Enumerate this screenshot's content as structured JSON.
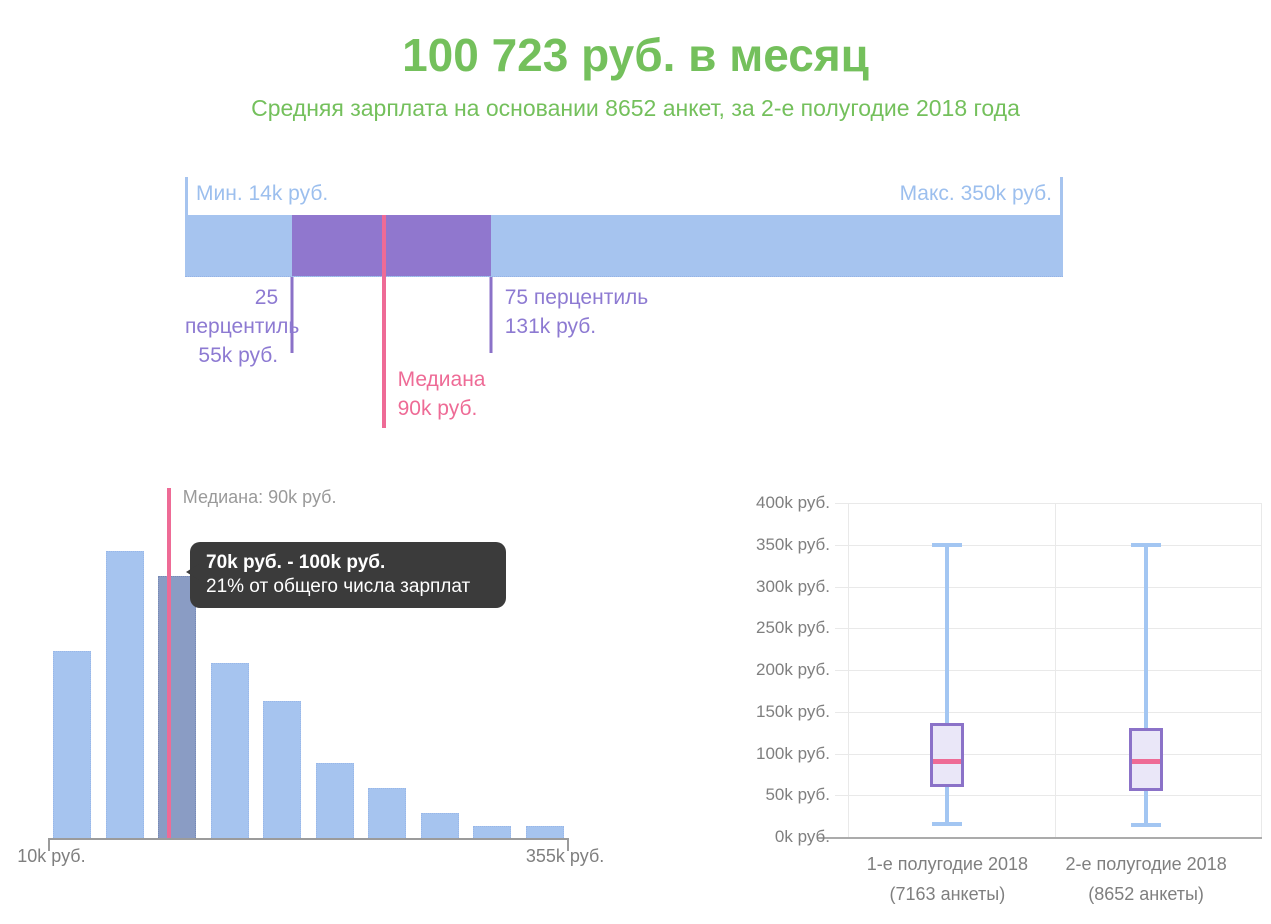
{
  "header": {
    "title": "100 723 руб. в месяц",
    "subtitle": "Средняя зарплата на основании 8652 анкет, за 2-е полугодие 2018 года"
  },
  "colors": {
    "green": "#74c05c",
    "blue": "#a6c4ef",
    "blue_label": "#9cbfee",
    "whisker": "#a3c6f2",
    "purple": "#9077ce",
    "purple_line": "#8b72c8",
    "purple_label": "#8d7ad2",
    "pink": "#ee6b96",
    "gray": "#7f7f7f",
    "gray_light": "#9a9a9a",
    "selected": "#8a9cc4",
    "tooltip": "#3b3b3b",
    "boxfill": "rgba(230,227,247,0.85)",
    "grid": "#e9e9e9",
    "axis": "#9b9b9b"
  },
  "chart_data": [
    {
      "type": "range_strip",
      "min": 14,
      "q1": 55,
      "median": 90,
      "q3": 131,
      "max": 350,
      "unit": "k руб.",
      "labels": {
        "min": "Мин. 14k руб.",
        "max": "Макс. 350k руб.",
        "q1": [
          "25 перцентиль",
          "55k руб."
        ],
        "q3": [
          "75 перцентиль",
          "131k руб."
        ],
        "median": [
          "Медиана",
          "90k руб."
        ]
      }
    },
    {
      "type": "bar",
      "x_min": 10,
      "x_max": 355,
      "x_range_labels": [
        "10k руб.",
        "355k руб."
      ],
      "values_percent": [
        15,
        23,
        21,
        14,
        11,
        6,
        4,
        2,
        1,
        1
      ],
      "highlighted_bar_index": 2,
      "median_value": 90,
      "median_label": "Медиана: 90k руб.",
      "tooltip": {
        "title": "70k руб. - 100k руб.",
        "subtitle": "21% от общего числа зарплат"
      }
    },
    {
      "type": "boxplot",
      "y_max": 400,
      "grid": true,
      "y_ticks": [
        {
          "value": 400,
          "label": "400k руб."
        },
        {
          "value": 350,
          "label": "350k руб."
        },
        {
          "value": 300,
          "label": "300k руб."
        },
        {
          "value": 250,
          "label": "250k руб."
        },
        {
          "value": 200,
          "label": "200k руб."
        },
        {
          "value": 150,
          "label": "150k руб."
        },
        {
          "value": 100,
          "label": "100k руб."
        },
        {
          "value": 50,
          "label": "50k руб."
        },
        {
          "value": 0,
          "label": "0k руб."
        }
      ],
      "series": [
        {
          "label": "1-е полугодие 2018",
          "sublabel": "(7163 анкеты)",
          "min": 15,
          "q1": 60,
          "median": 90,
          "q3": 137,
          "max": 350
        },
        {
          "label": "2-е полугодие 2018",
          "sublabel": "(8652 анкеты)",
          "min": 14,
          "q1": 55,
          "median": 90,
          "q3": 131,
          "max": 350
        }
      ]
    }
  ]
}
